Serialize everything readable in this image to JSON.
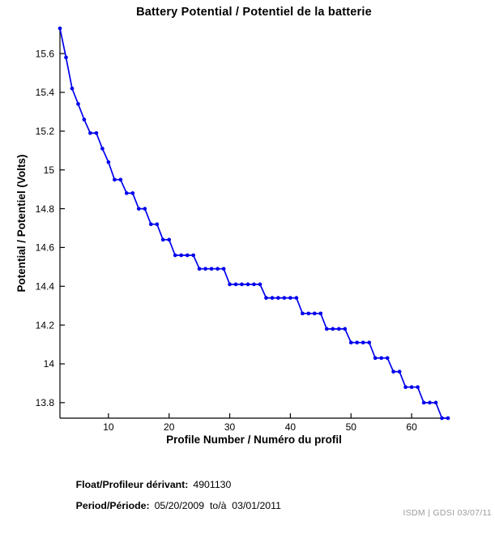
{
  "title": "Battery Potential / Potentiel de la batterie",
  "footer": {
    "float_label": "Float/Profileur dérivant:",
    "float_value": "4901130",
    "period_label": "Period/Période:",
    "period_value": "05/20/2009  to/à  03/01/2011",
    "watermark": "ISDM | GDSI 03/07/11"
  },
  "colors": {
    "line": "#0000ee",
    "axis": "#000000",
    "text": "#000000",
    "watermark": "#9b9b9b",
    "background": "#ffffff"
  },
  "chart_data": {
    "type": "line",
    "title": "Battery Potential / Potentiel de la batterie",
    "xlabel": "Profile Number / Numéro du profil",
    "ylabel": "Potential / Potentiel (Volts)",
    "xlim": [
      2,
      66
    ],
    "ylim": [
      13.72,
      15.73
    ],
    "xticks": [
      10,
      20,
      30,
      40,
      50,
      60
    ],
    "yticks": [
      13.8,
      14,
      14.2,
      14.4,
      14.6,
      14.8,
      15,
      15.2,
      15.4,
      15.6
    ],
    "grid": false,
    "legend": "none",
    "marker": "dot",
    "x": [
      2,
      3,
      4,
      5,
      6,
      7,
      8,
      9,
      10,
      11,
      12,
      13,
      14,
      15,
      16,
      17,
      18,
      19,
      20,
      21,
      22,
      23,
      24,
      25,
      26,
      27,
      28,
      29,
      30,
      31,
      32,
      33,
      34,
      35,
      36,
      37,
      38,
      39,
      40,
      41,
      42,
      43,
      44,
      45,
      46,
      47,
      48,
      49,
      50,
      51,
      52,
      53,
      54,
      55,
      56,
      57,
      58,
      59,
      60,
      61,
      62,
      63,
      64,
      65,
      66
    ],
    "y": [
      15.73,
      15.58,
      15.42,
      15.34,
      15.26,
      15.19,
      15.19,
      15.11,
      15.04,
      14.95,
      14.95,
      14.88,
      14.88,
      14.8,
      14.8,
      14.72,
      14.72,
      14.64,
      14.64,
      14.56,
      14.56,
      14.56,
      14.56,
      14.49,
      14.49,
      14.49,
      14.49,
      14.49,
      14.41,
      14.41,
      14.41,
      14.41,
      14.41,
      14.41,
      14.34,
      14.34,
      14.34,
      14.34,
      14.34,
      14.34,
      14.26,
      14.26,
      14.26,
      14.26,
      14.18,
      14.18,
      14.18,
      14.18,
      14.11,
      14.11,
      14.11,
      14.11,
      14.03,
      14.03,
      14.03,
      13.96,
      13.96,
      13.88,
      13.88,
      13.88,
      13.8,
      13.8,
      13.8,
      13.72,
      13.72
    ]
  }
}
